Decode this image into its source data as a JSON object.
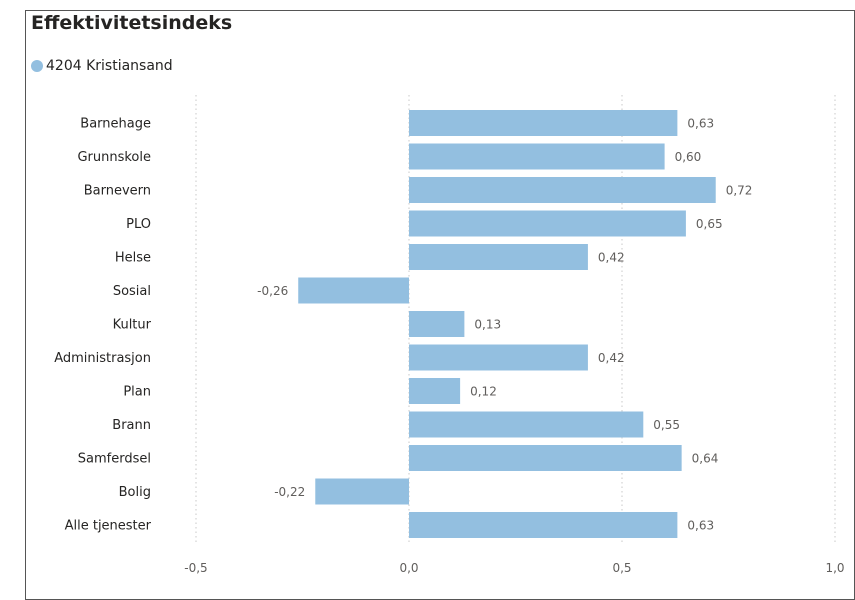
{
  "chart_data": {
    "type": "bar",
    "orientation": "horizontal",
    "title": "Effektivitetsindeks",
    "xlabel": "",
    "ylabel": "",
    "xlim": [
      -0.5,
      1.0
    ],
    "ticks": [
      -0.5,
      0.0,
      0.5,
      1.0
    ],
    "tick_labels": [
      "-0,5",
      "0,0",
      "0,5",
      "1,0"
    ],
    "grid": true,
    "legend_position": "top-left",
    "series": [
      {
        "name": "4204 Kristiansand",
        "color": "#93bfe0",
        "values": [
          0.63,
          0.6,
          0.72,
          0.65,
          0.42,
          -0.26,
          0.13,
          0.42,
          0.12,
          0.55,
          0.64,
          -0.22,
          0.63
        ],
        "labels": [
          "0,63",
          "0,60",
          "0,72",
          "0,65",
          "0,42",
          "-0,26",
          "0,13",
          "0,42",
          "0,12",
          "0,55",
          "0,64",
          "-0,22",
          "0,63"
        ]
      }
    ],
    "categories": [
      "Barnehage",
      "Grunnskole",
      "Barnevern",
      "PLO",
      "Helse",
      "Sosial",
      "Kultur",
      "Administrasjon",
      "Plan",
      "Brann",
      "Samferdsel",
      "Bolig",
      "Alle tjenester"
    ]
  }
}
